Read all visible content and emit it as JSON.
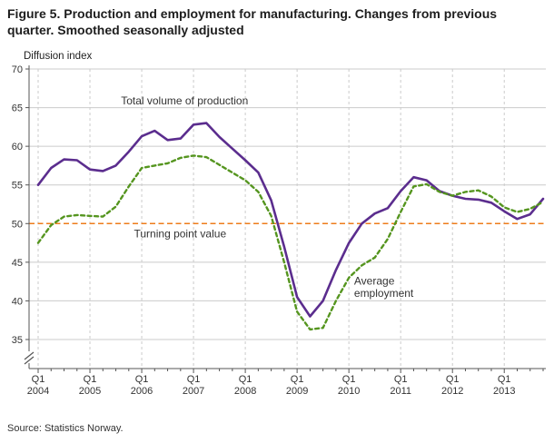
{
  "title": "Figure 5. Production and employment for manufacturing. Changes from previous quarter. Smoothed seasonally adjusted",
  "source": "Source: Statistics Norway.",
  "chart_data": {
    "type": "line",
    "title": "Figure 5. Production and employment for manufacturing. Changes from previous quarter. Smoothed seasonally adjusted",
    "ylabel": "Diffusion index",
    "xlabel": "",
    "ylim": [
      35,
      70
    ],
    "ytick_step": 5,
    "x_tick_quarter_label": "Q1",
    "x_years": [
      2004,
      2005,
      2006,
      2007,
      2008,
      2009,
      2010,
      2011,
      2012,
      2013
    ],
    "quarters_per_year": 4,
    "grid": {
      "horizontal": "solid",
      "vertical": "dashed-per-year"
    },
    "legend_position": "inline-annotations",
    "axis_break_below_min": true,
    "colors": {
      "grid": "#cbcbcb",
      "axis": "#555555",
      "text": "#333333"
    },
    "series": [
      {
        "name": "Total volume of production",
        "color": "#5b2d8e",
        "line_style": "solid",
        "values": [
          55.0,
          57.2,
          58.3,
          58.2,
          57.0,
          56.8,
          57.5,
          59.3,
          61.3,
          62.0,
          60.8,
          61.0,
          62.8,
          63.0,
          61.2,
          59.7,
          58.2,
          56.6,
          53.0,
          47.0,
          40.5,
          38.0,
          40.0,
          44.0,
          47.5,
          50.0,
          51.3,
          52.0,
          54.2,
          56.0,
          55.6,
          54.2,
          53.6,
          53.2,
          53.1,
          52.7,
          51.6,
          50.6,
          51.2,
          53.2
        ]
      },
      {
        "name": "Average employment",
        "color": "#55951f",
        "line_style": "dashed",
        "values": [
          47.5,
          49.8,
          50.9,
          51.1,
          51.0,
          50.9,
          52.2,
          54.8,
          57.2,
          57.5,
          57.8,
          58.5,
          58.8,
          58.6,
          57.6,
          56.6,
          55.6,
          54.1,
          51.0,
          45.0,
          38.6,
          36.3,
          36.5,
          40.0,
          43.0,
          44.6,
          45.6,
          48.0,
          51.5,
          54.8,
          55.1,
          54.1,
          53.6,
          54.1,
          54.3,
          53.5,
          52.1,
          51.5,
          51.9,
          52.8
        ]
      }
    ],
    "reference_line": {
      "label": "Turning point value",
      "value": 50,
      "color": "#ee7c1b",
      "line_style": "dashed"
    },
    "annotations": [
      {
        "text": "Total volume of production",
        "x_quarter": 6.4,
        "y_value": 65.4
      },
      {
        "text": "Turning point value",
        "x_quarter": 7.4,
        "y_value": 48.2
      },
      {
        "text": "Average",
        "x_quarter": 24.4,
        "y_value": 42.1
      },
      {
        "text": "employment",
        "x_quarter": 24.4,
        "y_value": 40.5
      }
    ]
  }
}
